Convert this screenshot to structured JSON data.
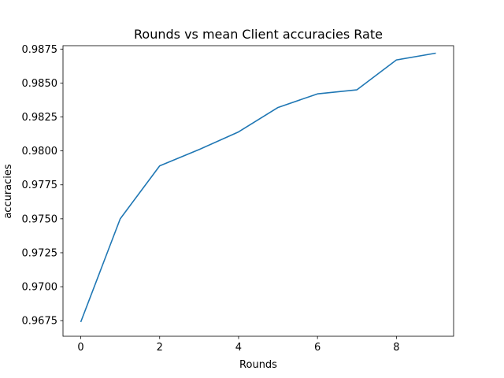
{
  "chart_data": {
    "type": "line",
    "title": "Rounds vs mean Client accuracies Rate",
    "xlabel": "Rounds",
    "ylabel": "accuracies",
    "xlim": [
      -0.45,
      9.45
    ],
    "ylim": [
      0.96635,
      0.98775
    ],
    "xticks": [
      0,
      2,
      4,
      6,
      8
    ],
    "xtick_labels": [
      "0",
      "2",
      "4",
      "6",
      "8"
    ],
    "yticks": [
      0.9675,
      0.97,
      0.9725,
      0.975,
      0.9775,
      0.98,
      0.9825,
      0.985,
      0.9875
    ],
    "ytick_labels": [
      "0.9675",
      "0.9700",
      "0.9725",
      "0.9750",
      "0.9775",
      "0.9800",
      "0.9825",
      "0.9850",
      "0.9875"
    ],
    "grid": false,
    "series": [
      {
        "color": "#1f77b4",
        "x": [
          0,
          1,
          2,
          3,
          4,
          5,
          6,
          7,
          8,
          9
        ],
        "y": [
          0.9674,
          0.975,
          0.9789,
          0.9801,
          0.9814,
          0.9832,
          0.9842,
          0.9845,
          0.9867,
          0.9872
        ]
      }
    ]
  }
}
